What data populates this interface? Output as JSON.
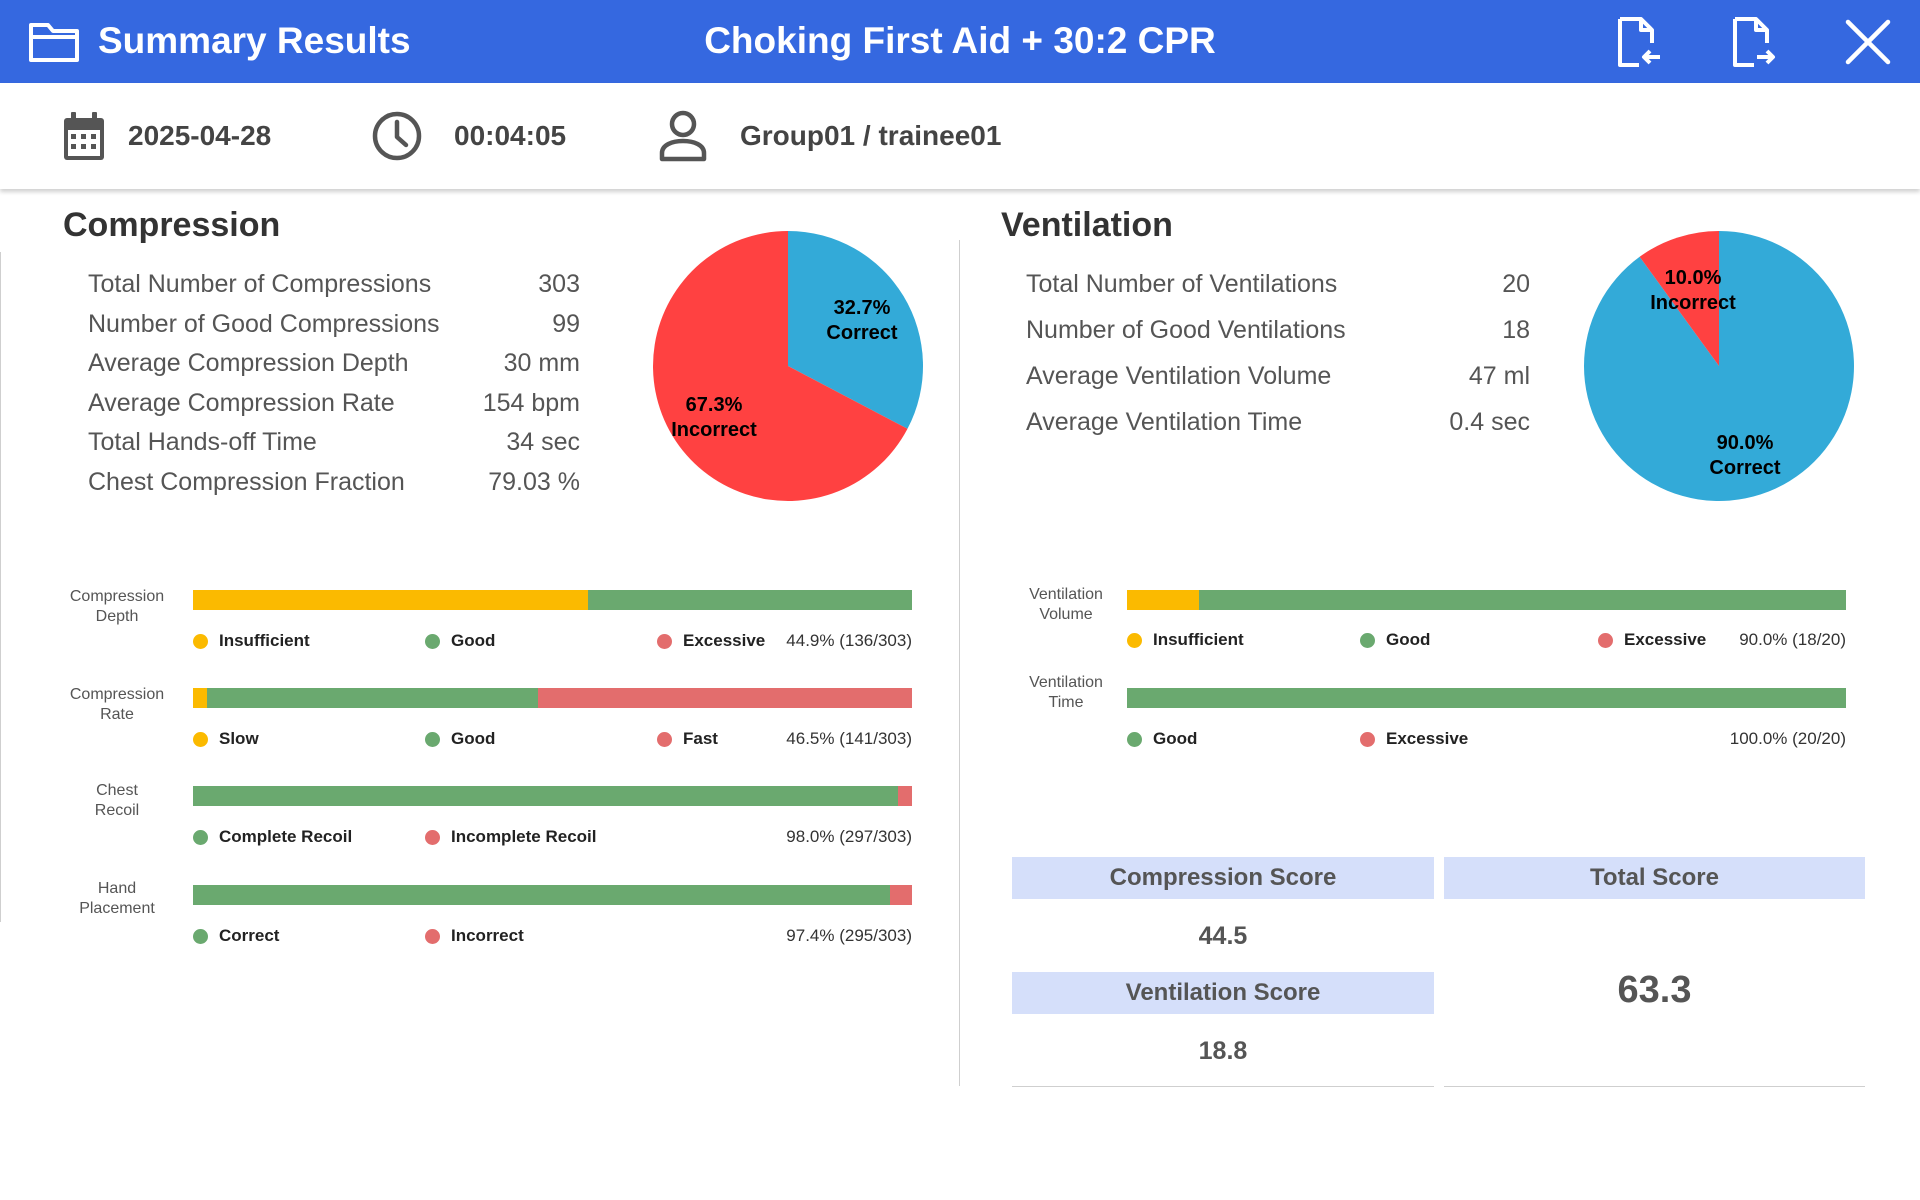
{
  "header": {
    "title": "Summary Results",
    "scenario": "Choking First Aid + 30:2 CPR",
    "buttons": {
      "import": "import-file",
      "export": "export-file",
      "close": "close"
    }
  },
  "info": {
    "date": "2025-04-28",
    "duration": "00:04:05",
    "user": "Group01 / trainee01"
  },
  "compression": {
    "title": "Compression",
    "stats": [
      {
        "label": "Total Number of Compressions",
        "value": "303"
      },
      {
        "label": "Number of Good Compressions",
        "value": "99"
      },
      {
        "label": "Average Compression Depth",
        "value": "30 mm"
      },
      {
        "label": "Average Compression Rate",
        "value": "154 bpm"
      },
      {
        "label": "Total Hands-off Time",
        "value": "34 sec"
      },
      {
        "label": "Chest Compression Fraction",
        "value": "79.03 %"
      }
    ],
    "pie": {
      "correct_pct": "32.7%",
      "correct_label": "Correct",
      "correct_value": 32.7,
      "incorrect_pct": "67.3%",
      "incorrect_label": "Incorrect",
      "incorrect_value": 67.3
    },
    "metrics": [
      {
        "label_1": "Compression",
        "label_2": "Depth",
        "segments": [
          {
            "color": "#fbba00",
            "value": 55
          },
          {
            "color": "#6aa96f",
            "value": 45
          }
        ],
        "legend": [
          {
            "label": "Insufficient",
            "color": "#fbba00"
          },
          {
            "label": "Good",
            "color": "#6aa96f"
          },
          {
            "label": "Excessive",
            "color": "#e36d6d"
          }
        ],
        "percent": "44.9% (136/303)"
      },
      {
        "label_1": "Compression",
        "label_2": "Rate",
        "segments": [
          {
            "color": "#fbba00",
            "value": 2
          },
          {
            "color": "#6aa96f",
            "value": 46
          },
          {
            "color": "#e36d6d",
            "value": 52
          }
        ],
        "legend": [
          {
            "label": "Slow",
            "color": "#fbba00"
          },
          {
            "label": "Good",
            "color": "#6aa96f"
          },
          {
            "label": "Fast",
            "color": "#e36d6d"
          }
        ],
        "percent": "46.5% (141/303)"
      },
      {
        "label_1": "Chest",
        "label_2": "Recoil",
        "segments": [
          {
            "color": "#6aa96f",
            "value": 98
          },
          {
            "color": "#e36d6d",
            "value": 2
          }
        ],
        "legend": [
          {
            "label": "Complete Recoil",
            "color": "#6aa96f"
          },
          {
            "label": "Incomplete Recoil",
            "color": "#e36d6d"
          }
        ],
        "percent": "98.0% (297/303)"
      },
      {
        "label_1": "Hand",
        "label_2": "Placement",
        "segments": [
          {
            "color": "#6aa96f",
            "value": 97
          },
          {
            "color": "#e36d6d",
            "value": 3
          }
        ],
        "legend": [
          {
            "label": "Correct",
            "color": "#6aa96f"
          },
          {
            "label": "Incorrect",
            "color": "#e36d6d"
          }
        ],
        "percent": "97.4% (295/303)"
      }
    ]
  },
  "ventilation": {
    "title": "Ventilation",
    "stats": [
      {
        "label": "Total Number of Ventilations",
        "value": "20"
      },
      {
        "label": "Number of Good Ventilations",
        "value": "18"
      },
      {
        "label": "Average Ventilation Volume",
        "value": "47 ml"
      },
      {
        "label": "Average Ventilation Time",
        "value": "0.4 sec"
      }
    ],
    "pie": {
      "correct_pct": "90.0%",
      "correct_label": "Correct",
      "correct_value": 90.0,
      "incorrect_pct": "10.0%",
      "incorrect_label": "Incorrect",
      "incorrect_value": 10.0
    },
    "metrics": [
      {
        "label_1": "Ventilation",
        "label_2": "Volume",
        "segments": [
          {
            "color": "#fbba00",
            "value": 10
          },
          {
            "color": "#6aa96f",
            "value": 90
          }
        ],
        "legend": [
          {
            "label": "Insufficient",
            "color": "#fbba00"
          },
          {
            "label": "Good",
            "color": "#6aa96f"
          },
          {
            "label": "Excessive",
            "color": "#e36d6d"
          }
        ],
        "percent": "90.0% (18/20)"
      },
      {
        "label_1": "Ventilation",
        "label_2": "Time",
        "segments": [
          {
            "color": "#6aa96f",
            "value": 100
          }
        ],
        "legend": [
          {
            "label": "Good",
            "color": "#6aa96f"
          },
          {
            "label": "Excessive",
            "color": "#e36d6d"
          }
        ],
        "percent": "100.0% (20/20)"
      }
    ]
  },
  "scores": {
    "compression_label": "Compression Score",
    "compression_value": "44.5",
    "ventilation_label": "Ventilation Score",
    "ventilation_value": "18.8",
    "total_label": "Total Score",
    "total_value": "63.3"
  },
  "colors": {
    "header": "#3568e0",
    "pie_correct": "#33aad8",
    "pie_incorrect": "#ff4141",
    "insufficient": "#fbba00",
    "good": "#6aa96f",
    "excessive": "#e36d6d",
    "score_header": "#d5dffa"
  }
}
